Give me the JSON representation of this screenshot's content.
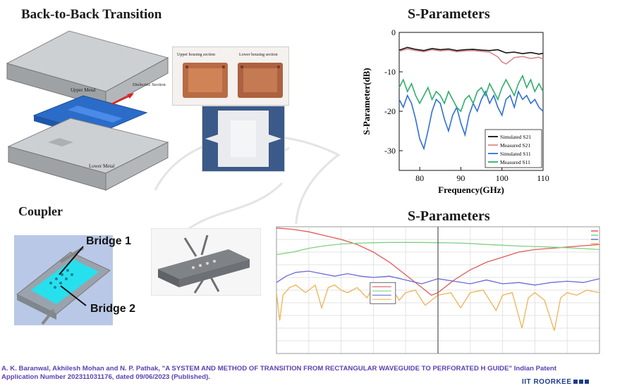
{
  "headings": {
    "back_to_back": "Back-to-Back Transition",
    "sparams_top": "S-Parameters",
    "coupler": "Coupler",
    "sparams_bottom": "S-Parameters"
  },
  "model_labels": {
    "upper_metal": "Upper Metal",
    "lower_metal": "Lower Metal",
    "dielectric": "Dielectric Section",
    "upper_housing": "Upper housing section",
    "lower_housing": "Lower housing section"
  },
  "coupler_labels": {
    "bridge1": "Bridge 1",
    "bridge2": "Bridge 2"
  },
  "citation": "A. K. Baranwal, Akhilesh Mohan and N. P. Pathak, \"A SYSTEM AND METHOD OF TRANSITION FROM RECTANGULAR WAVEGUIDE TO PERFORATED H GUIDE\" Indian Patent Application Number 202311031176, dated 09/06/2023 (Published).",
  "brand": "IIT ROORKEE",
  "colors": {
    "citation": "#5b3fb3",
    "brand": "#1f3c88",
    "copper": "#b86b45",
    "cyan": "#27e0ee"
  },
  "chart_data": [
    {
      "type": "line",
      "title": "S-Parameters",
      "xlabel": "Frequency(GHz)",
      "ylabel": "S-Parameter(dB)",
      "xlim": [
        75,
        110
      ],
      "ylim": [
        -35,
        0
      ],
      "xticks": [
        80,
        90,
        100,
        110
      ],
      "yticks": [
        -30,
        -20,
        -10,
        0
      ],
      "legend_position": "bottom-right",
      "series": [
        {
          "name": "Simulated S21",
          "color": "#111111",
          "x": [
            75,
            77,
            79,
            81,
            83,
            85,
            87,
            89,
            91,
            93,
            95,
            97,
            99,
            100,
            101,
            103,
            105,
            107,
            109,
            110
          ],
          "y": [
            -4.5,
            -3.8,
            -4.3,
            -4.6,
            -4.1,
            -4.4,
            -4.2,
            -4.6,
            -4.4,
            -4.3,
            -4.5,
            -4.6,
            -4.4,
            -4.8,
            -5.2,
            -5.0,
            -5.4,
            -5.1,
            -5.5,
            -5.3
          ]
        },
        {
          "name": "Measured S21",
          "color": "#d98a8a",
          "x": [
            75,
            77,
            79,
            81,
            83,
            85,
            87,
            89,
            91,
            93,
            95,
            97,
            98,
            99,
            100,
            101,
            102,
            103,
            105,
            107,
            109,
            110
          ],
          "y": [
            -4.8,
            -4.2,
            -4.6,
            -4.9,
            -4.4,
            -4.7,
            -4.5,
            -4.9,
            -4.7,
            -4.6,
            -4.8,
            -5.0,
            -5.6,
            -6.2,
            -7.5,
            -8.0,
            -7.2,
            -6.4,
            -6.1,
            -6.6,
            -6.3,
            -6.8
          ]
        },
        {
          "name": "Simulated S11",
          "color": "#2f6fd6",
          "x": [
            75,
            76,
            77,
            78,
            79,
            80,
            81,
            82,
            83,
            84,
            85,
            86,
            87,
            88,
            89,
            90,
            91,
            92,
            93,
            94,
            95,
            96,
            97,
            98,
            99,
            100,
            101,
            102,
            103,
            104,
            105,
            106,
            107,
            108,
            109,
            110
          ],
          "y": [
            -17,
            -19,
            -16,
            -18,
            -22,
            -27,
            -29.5,
            -25,
            -20,
            -17,
            -18,
            -22,
            -25,
            -21,
            -19,
            -23,
            -26,
            -21,
            -18,
            -20,
            -17,
            -15,
            -18,
            -16,
            -19,
            -21,
            -17,
            -16,
            -19,
            -15,
            -17,
            -16,
            -18,
            -17,
            -19,
            -20
          ]
        },
        {
          "name": "Measured S11",
          "color": "#2fae6b",
          "x": [
            75,
            76,
            77,
            78,
            79,
            80,
            81,
            82,
            83,
            84,
            85,
            86,
            87,
            88,
            89,
            90,
            91,
            92,
            93,
            94,
            95,
            96,
            97,
            98,
            99,
            100,
            101,
            102,
            103,
            104,
            105,
            106,
            107,
            108,
            109,
            110
          ],
          "y": [
            -14,
            -12,
            -15,
            -13,
            -16,
            -18,
            -16,
            -14,
            -17,
            -15,
            -16,
            -18,
            -15,
            -17,
            -19,
            -20,
            -17,
            -16,
            -18,
            -15,
            -14,
            -16,
            -13,
            -15,
            -17,
            -14,
            -12,
            -14,
            -16,
            -13,
            -11,
            -14,
            -12,
            -15,
            -13,
            -15
          ]
        }
      ]
    },
    {
      "type": "line",
      "title": "S-Parameters",
      "xlim": [
        0,
        100
      ],
      "ylim": [
        -50,
        0
      ],
      "legend_position": "top-right",
      "marker_x": 50,
      "series": [
        {
          "color": "#e05a5a",
          "x": [
            0,
            5,
            10,
            15,
            20,
            25,
            30,
            35,
            40,
            45,
            48,
            50,
            52,
            55,
            60,
            65,
            70,
            75,
            80,
            85,
            90,
            95,
            100
          ],
          "y": [
            -0.5,
            -1,
            -2,
            -3.5,
            -5,
            -7,
            -10,
            -14,
            -19,
            -24,
            -27,
            -26,
            -24,
            -21,
            -17,
            -14,
            -12,
            -10,
            -9,
            -8.5,
            -8,
            -7.5,
            -7
          ]
        },
        {
          "color": "#7fd17f",
          "x": [
            0,
            5,
            10,
            15,
            20,
            25,
            30,
            35,
            40,
            45,
            50,
            55,
            60,
            65,
            70,
            75,
            80,
            85,
            90,
            95,
            100
          ],
          "y": [
            -11,
            -10,
            -8.5,
            -7.5,
            -6.8,
            -6.5,
            -6.3,
            -6.2,
            -6.2,
            -6.2,
            -6.3,
            -6.4,
            -6.6,
            -7,
            -7.3,
            -7.6,
            -7.8,
            -8,
            -8.3,
            -8.6,
            -9
          ]
        },
        {
          "color": "#6a6ad6",
          "x": [
            0,
            3,
            6,
            10,
            14,
            18,
            22,
            26,
            30,
            35,
            40,
            45,
            50,
            55,
            60,
            65,
            70,
            75,
            80,
            85,
            90,
            95,
            100
          ],
          "y": [
            -22,
            -19.5,
            -18,
            -17.5,
            -18.5,
            -19.5,
            -18.5,
            -19.5,
            -20,
            -19.5,
            -21,
            -22.5,
            -20.5,
            -21.5,
            -22.5,
            -21,
            -22.5,
            -22,
            -23,
            -22,
            -21.5,
            -22,
            -20.5
          ]
        },
        {
          "color": "#f0b254",
          "x": [
            0,
            1,
            2,
            4,
            6,
            9,
            12,
            14,
            16,
            18,
            20,
            22,
            25,
            28,
            30,
            33,
            36,
            38,
            40,
            43,
            46,
            50,
            54,
            57,
            60,
            64,
            68,
            70,
            73,
            76,
            78,
            80,
            83,
            86,
            88,
            90,
            93,
            96,
            100
          ],
          "y": [
            -26,
            -37,
            -27,
            -24,
            -23,
            -26,
            -23,
            -32,
            -24,
            -23,
            -25,
            -26,
            -24,
            -28,
            -24,
            -27,
            -25,
            -29,
            -26,
            -25,
            -31,
            -27,
            -26,
            -32,
            -26,
            -25,
            -33,
            -27,
            -26,
            -40,
            -28,
            -26,
            -29,
            -41,
            -28,
            -26,
            -27,
            -25,
            -26
          ]
        }
      ]
    }
  ]
}
